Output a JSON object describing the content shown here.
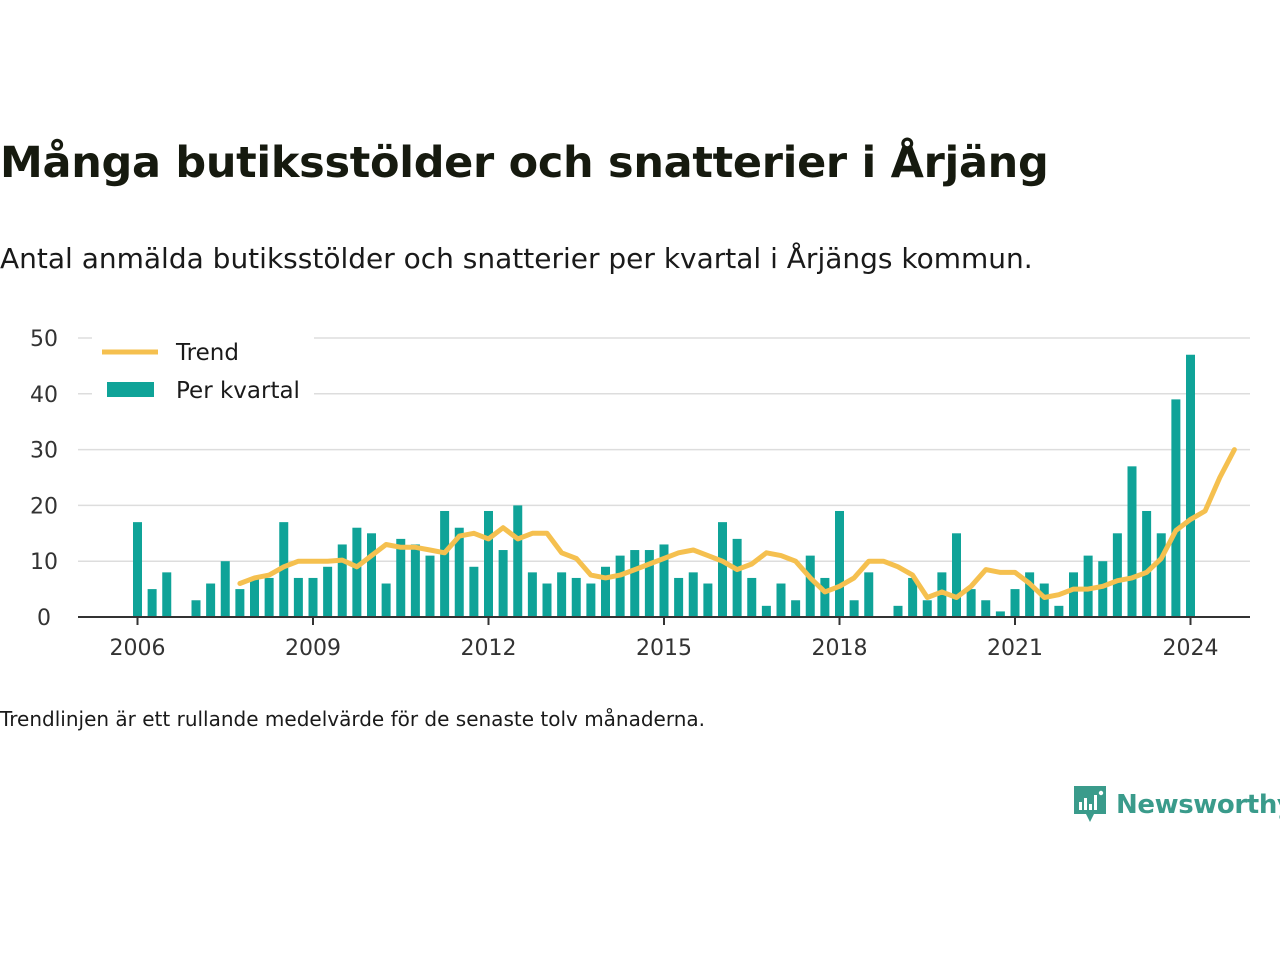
{
  "header": {
    "title": "Många butiksstölder och snatterier i Årjäng",
    "subtitle": "Antal anmälda butiksstölder och snatterier per kvartal i Årjängs kommun."
  },
  "footnote": "Trendlinjen är ett rullande medelvärde för de senaste tolv månaderna.",
  "brand": {
    "name": "Newsworthy",
    "icon": "newsworthy-logo-icon",
    "color": "#3a9b8b"
  },
  "chart_data": {
    "type": "bar",
    "title": "Många butiksstölder och snatterier i Årjäng",
    "xlabel": "",
    "ylabel": "",
    "ylim": [
      0,
      50
    ],
    "yticks": [
      0,
      10,
      20,
      30,
      40,
      50
    ],
    "xtick_labels": [
      "2006",
      "2009",
      "2012",
      "2015",
      "2018",
      "2021",
      "2024"
    ],
    "x_start": "2006 Q1",
    "grid": true,
    "legend_position": "top-left",
    "colors": {
      "bars": "#0fa398",
      "trend": "#f5c04f",
      "grid": "#dddddd",
      "axis": "#333333"
    },
    "series": [
      {
        "name": "Trend",
        "type": "line",
        "x_start": "2007 Q4",
        "values": [
          6,
          7,
          7.5,
          9,
          10,
          10,
          10,
          10.2,
          9,
          11,
          13,
          12.5,
          12.5,
          12,
          11.5,
          14.5,
          15,
          14,
          16,
          14,
          15,
          15,
          11.5,
          10.5,
          7.5,
          7,
          7.5,
          8.5,
          9.5,
          10.5,
          11.5,
          12,
          11,
          10,
          8.5,
          9.5,
          11.5,
          11,
          10,
          7,
          4.5,
          5.5,
          7,
          10,
          10,
          9,
          7.5,
          3.5,
          4.5,
          3.5,
          5.5,
          8.5,
          8,
          8,
          6,
          3.5,
          4,
          5,
          5,
          5.5,
          6.5,
          7,
          8,
          10.5,
          15.5,
          17.5,
          19,
          25,
          30
        ]
      },
      {
        "name": "Per kvartal",
        "type": "bar",
        "x_start": "2006 Q1",
        "values": [
          17,
          5,
          8,
          0,
          3,
          6,
          10,
          5,
          7,
          7,
          17,
          7,
          7,
          9,
          13,
          16,
          15,
          6,
          14,
          13,
          11,
          19,
          16,
          9,
          19,
          12,
          20,
          8,
          6,
          8,
          7,
          6,
          9,
          11,
          12,
          12,
          13,
          7,
          8,
          6,
          17,
          14,
          7,
          2,
          6,
          3,
          11,
          7,
          19,
          3,
          8,
          0,
          2,
          7,
          3,
          8,
          15,
          5,
          3,
          1,
          5,
          8,
          6,
          2,
          8,
          11,
          10,
          15,
          27,
          19,
          15,
          39,
          47
        ]
      }
    ]
  }
}
